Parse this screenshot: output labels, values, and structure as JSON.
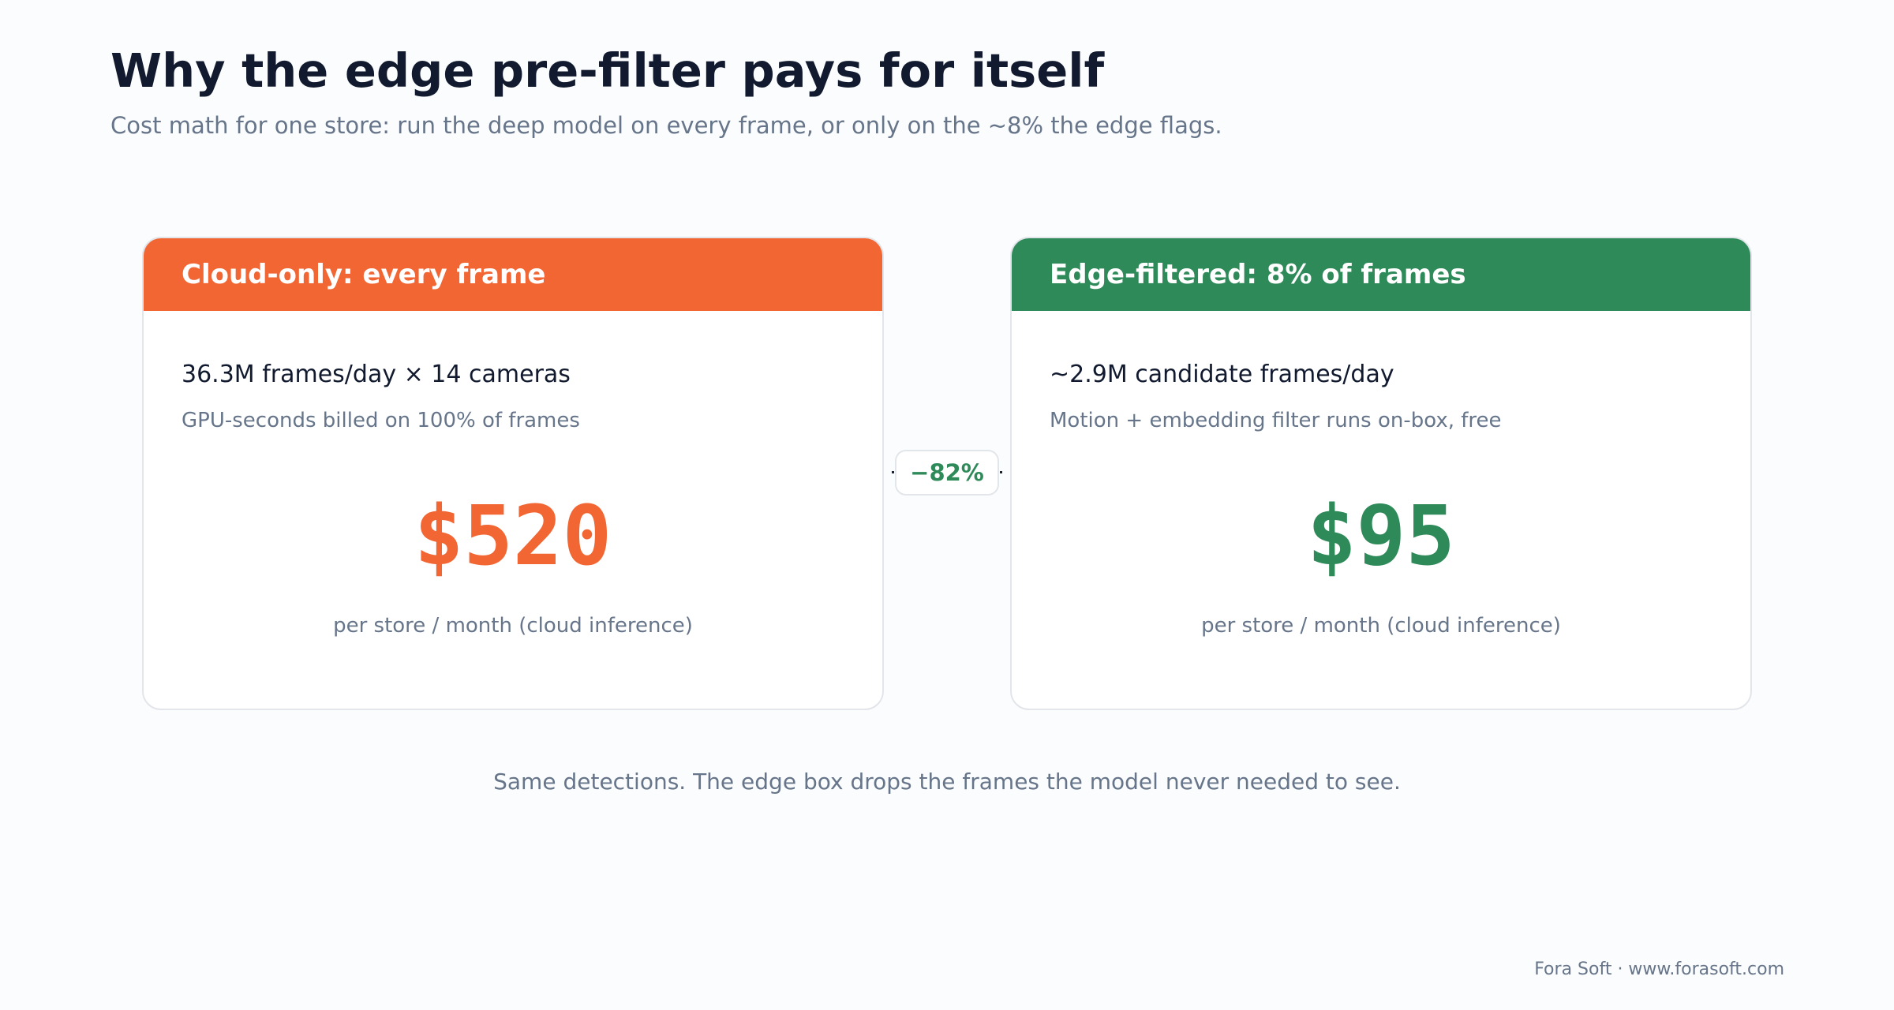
{
  "title": "Why the edge pre-filter pays for itself",
  "subtitle": "Cost math for one store: run the deep model on every frame, or only on the ~8% the edge flags.",
  "colors": {
    "cloud_accent": "#f26633",
    "edge_accent": "#2f8a59",
    "heading": "#111a2e",
    "muted_text": "#66758a"
  },
  "cards": {
    "cloud": {
      "header": "Cloud-only: every frame",
      "line1": "36.3M frames/day × 14 cameras",
      "line2": "GPU-seconds billed on 100% of frames",
      "amount": "$520",
      "unit": "per store / month (cloud inference)"
    },
    "edge": {
      "header": "Edge-filtered: 8% of frames",
      "line1": "~2.9M candidate frames/day",
      "line2": "Motion + embedding filter runs on-box, free",
      "amount": "$95",
      "unit": "per store / month (cloud inference)"
    }
  },
  "savings_badge": "−82%",
  "footer_note": "Same detections. The edge box drops the frames the model never needed to see.",
  "credit": "Fora Soft · www.forasoft.com"
}
